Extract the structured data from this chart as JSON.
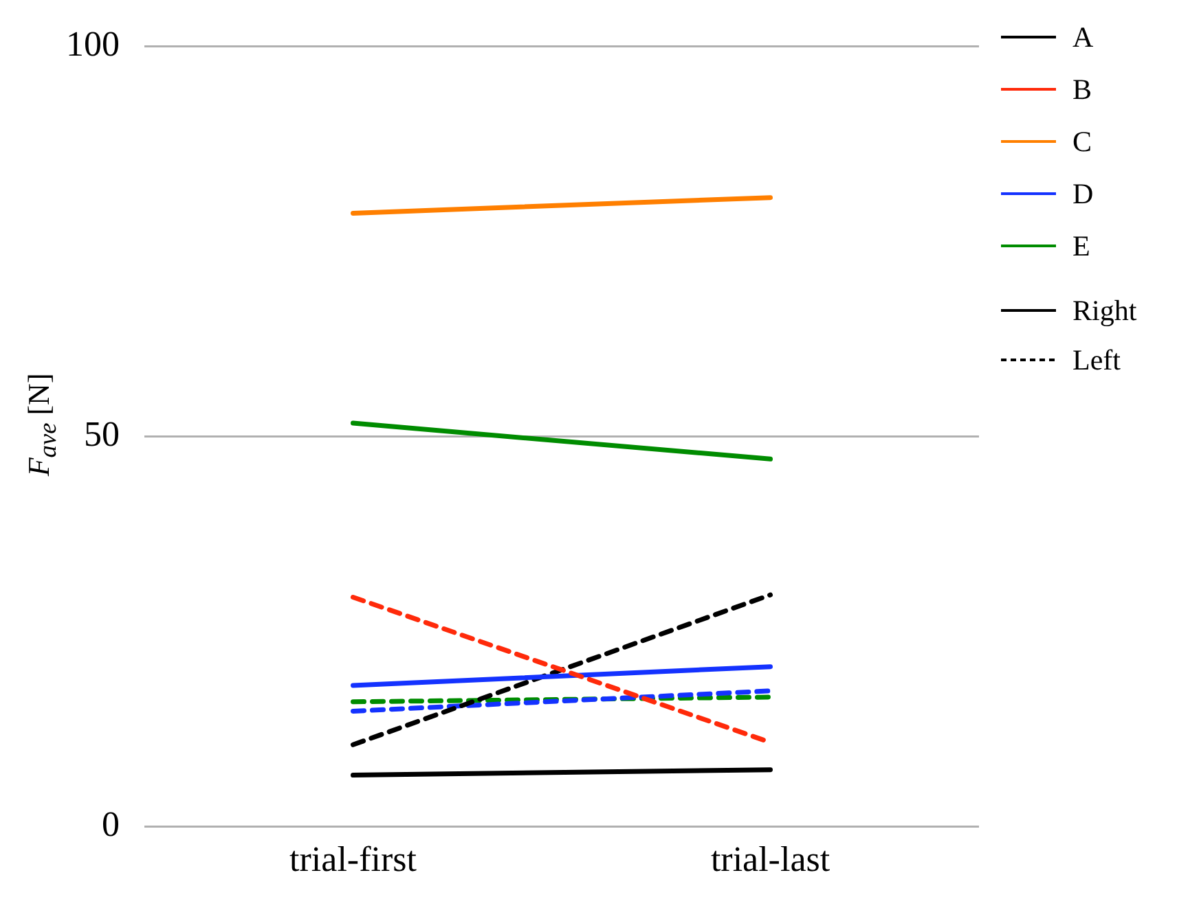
{
  "chart_data": {
    "type": "line",
    "ylabel": "F$_{ave}$ [N]",
    "categories": [
      "trial-first",
      "trial-last"
    ],
    "series": [
      {
        "name": "A",
        "color": "#000000",
        "values": [
          6.6,
          7.3
        ],
        "line_style": "solid"
      },
      {
        "name": "B",
        "color": "#ff2a0a",
        "values": [
          29.4,
          10.8
        ],
        "line_style": "dashed"
      },
      {
        "name": "C",
        "color": "#ff7f00",
        "values": [
          78.6,
          80.6
        ],
        "line_style": "solid"
      },
      {
        "name": "D",
        "color": "#1432ff",
        "values": [
          18.1,
          20.5
        ],
        "line_style": "solid"
      },
      {
        "name": "E",
        "color": "#008c00",
        "values": [
          51.7,
          47.1
        ],
        "line_style": "solid"
      },
      {
        "color": "#000000",
        "values": [
          10.5,
          29.7
        ],
        "line_style": "dashed"
      },
      {
        "color": "#1432ff",
        "values": [
          14.8,
          17.4
        ],
        "line_style": "dashed"
      },
      {
        "color": "#008c00",
        "values": [
          16.0,
          16.6
        ],
        "line_style": "dashed"
      }
    ],
    "ylim": [
      0,
      100
    ],
    "yticks": [
      0,
      50,
      100
    ],
    "grid": "y",
    "legend": "right",
    "marker": "none",
    "annotations": [
      "Right",
      "Left"
    ]
  }
}
